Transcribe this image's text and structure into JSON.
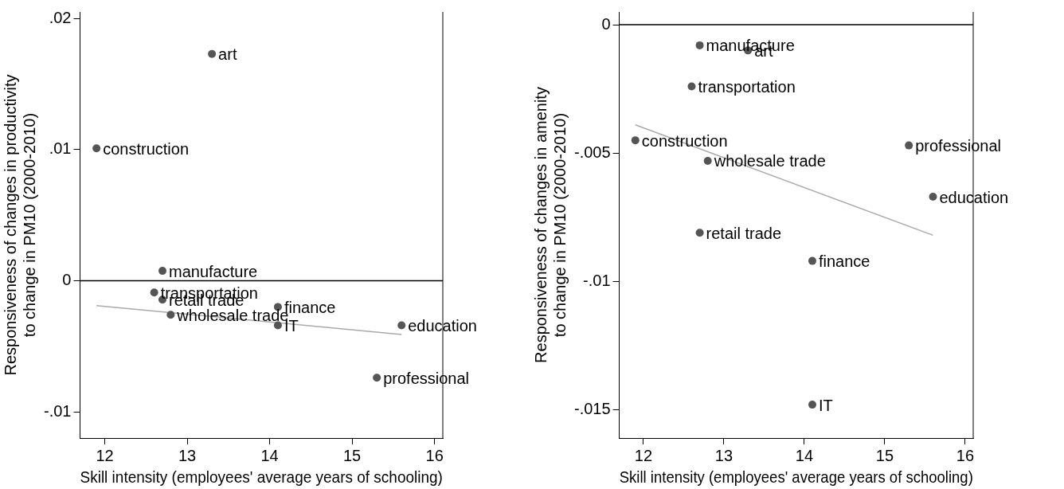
{
  "chart_data": [
    {
      "type": "scatter",
      "xlabel": "Skill intensity (employees' average years of schooling)",
      "ylabel": "Responsiveness of changes in productivity\nto change in PM10 (2000-2010)",
      "xlim": [
        11.7,
        16.1
      ],
      "ylim": [
        -0.012,
        0.0205
      ],
      "xticks": [
        12,
        13,
        14,
        15,
        16
      ],
      "yticks": [
        {
          "value": -0.01,
          "label": "-.01"
        },
        {
          "value": 0,
          "label": "0"
        },
        {
          "value": 0.01,
          "label": ".01"
        },
        {
          "value": 0.02,
          "label": ".02"
        }
      ],
      "grid": false,
      "legend": false,
      "series": [
        {
          "type": "scatter",
          "marker": "circle",
          "color": "#555555",
          "x": [
            13.3,
            11.9,
            12.7,
            12.6,
            12.7,
            12.8,
            14.1,
            14.1,
            15.6,
            15.3
          ],
          "values": [
            0.0173,
            0.0101,
            0.00075,
            -0.0009,
            -0.00145,
            -0.0026,
            -0.002,
            -0.0034,
            -0.0034,
            -0.0074
          ]
        },
        {
          "type": "line",
          "color": "#aaaaaa",
          "x": [
            11.9,
            15.6
          ],
          "values": [
            -0.0019,
            -0.0041
          ]
        }
      ],
      "ref_lines": [
        {
          "axis": "y",
          "value": 0,
          "color": "#000000"
        }
      ],
      "annotations": [
        {
          "text": "art",
          "x": 13.3,
          "y": 0.0173
        },
        {
          "text": "construction",
          "x": 11.9,
          "y": 0.0101
        },
        {
          "text": "manufacture",
          "x": 12.7,
          "y": 0.00075
        },
        {
          "text": "transportation",
          "x": 12.6,
          "y": -0.0009
        },
        {
          "text": "retail trade",
          "x": 12.7,
          "y": -0.00145
        },
        {
          "text": "wholesale trade",
          "x": 12.8,
          "y": -0.0026
        },
        {
          "text": "finance",
          "x": 14.1,
          "y": -0.002
        },
        {
          "text": "IT",
          "x": 14.1,
          "y": -0.0034
        },
        {
          "text": "education",
          "x": 15.6,
          "y": -0.0034
        },
        {
          "text": "professional",
          "x": 15.3,
          "y": -0.0074
        }
      ]
    },
    {
      "type": "scatter",
      "xlabel": "Skill intensity (employees' average years of schooling)",
      "ylabel": "Responsiveness of changes in amenity\nto change in PM10 (2000-2010)",
      "xlim": [
        11.7,
        16.1
      ],
      "ylim": [
        -0.0161,
        0.0005
      ],
      "xticks": [
        12,
        13,
        14,
        15,
        16
      ],
      "yticks": [
        {
          "value": -0.015,
          "label": "-.015"
        },
        {
          "value": -0.01,
          "label": "-.01"
        },
        {
          "value": -0.005,
          "label": "-.005"
        },
        {
          "value": 0,
          "label": "0"
        }
      ],
      "grid": false,
      "legend": false,
      "series": [
        {
          "type": "scatter",
          "marker": "circle",
          "color": "#555555",
          "x": [
            12.7,
            13.3,
            12.6,
            11.9,
            15.3,
            12.8,
            15.6,
            12.7,
            14.1,
            14.1
          ],
          "values": [
            -0.0008,
            -0.001,
            -0.0024,
            -0.0045,
            -0.0047,
            -0.0053,
            -0.0067,
            -0.0081,
            -0.0092,
            -0.0148
          ]
        },
        {
          "type": "line",
          "color": "#aaaaaa",
          "x": [
            11.9,
            15.6
          ],
          "values": [
            -0.0039,
            -0.0082
          ]
        }
      ],
      "ref_lines": [
        {
          "axis": "y",
          "value": 0,
          "color": "#000000"
        }
      ],
      "annotations": [
        {
          "text": "manufacture",
          "x": 12.7,
          "y": -0.0008
        },
        {
          "text": "art",
          "x": 13.3,
          "y": -0.001
        },
        {
          "text": "transportation",
          "x": 12.6,
          "y": -0.0024
        },
        {
          "text": "construction",
          "x": 11.9,
          "y": -0.0045
        },
        {
          "text": "professional",
          "x": 15.3,
          "y": -0.0047
        },
        {
          "text": "wholesale trade",
          "x": 12.8,
          "y": -0.0053
        },
        {
          "text": "education",
          "x": 15.6,
          "y": -0.0067
        },
        {
          "text": "retail trade",
          "x": 12.7,
          "y": -0.0081
        },
        {
          "text": "finance",
          "x": 14.1,
          "y": -0.0092
        },
        {
          "text": "IT",
          "x": 14.1,
          "y": -0.0148
        }
      ]
    }
  ]
}
